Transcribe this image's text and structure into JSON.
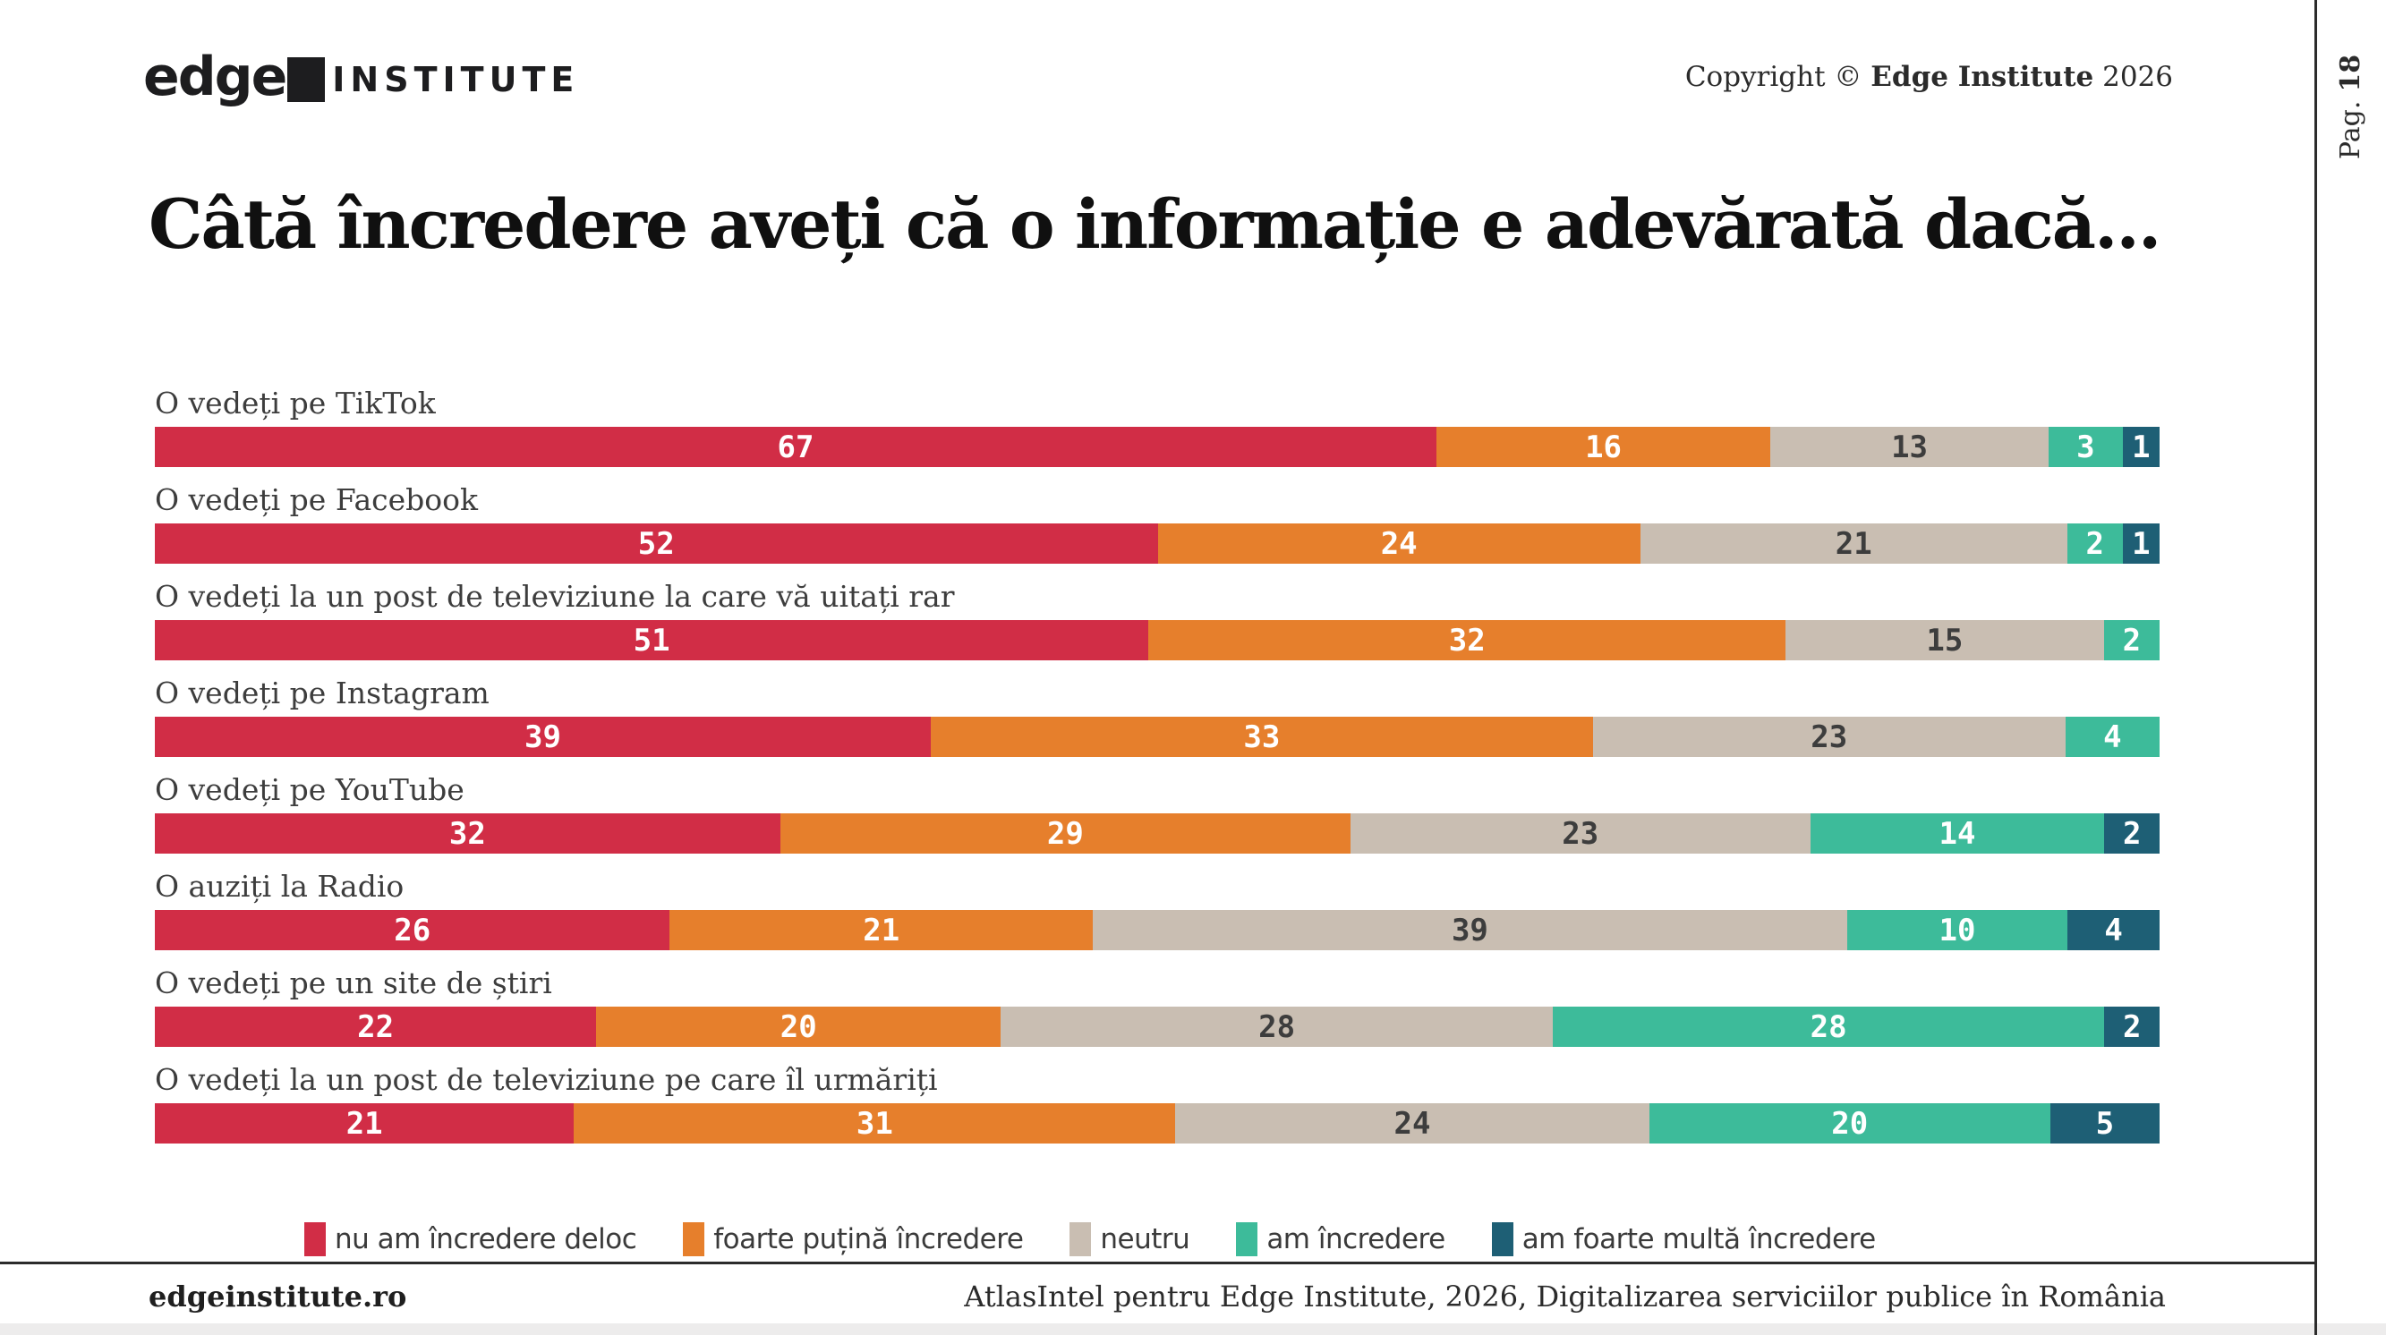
{
  "page": {
    "logo": {
      "word": "edge",
      "suffix": "INSTITUTE"
    },
    "copyright": {
      "prefix": "Copyright © ",
      "brand": "Edge Institute",
      "year": " 2026"
    },
    "page_label": "Pag.",
    "page_number": "18",
    "title": "Câtă încredere aveți că o informație e adevărată dacă...",
    "footer": {
      "left": "edgeinstitute.ro",
      "right": "AtlasIntel pentru Edge Institute, 2026, Digitalizarea serviciilor publice în România"
    }
  },
  "colors": {
    "no_trust": "#d12d46",
    "little_trust": "#e67f2c",
    "neutral": "#c9beb2",
    "trust": "#3dbb9a",
    "high_trust": "#1e5f75",
    "label_text": "#3d3d3d",
    "rule": "#2c2c2c"
  },
  "chart_data": {
    "type": "bar",
    "orientation": "horizontal-stacked",
    "title": "Câtă încredere aveți că o informație e adevărată dacă...",
    "value_range": [
      0,
      100
    ],
    "units": "percent",
    "legend_position": "bottom",
    "grid": false,
    "categories": [
      "O vedeți pe TikTok",
      "O vedeți pe Facebook",
      "O vedeți la un post de televiziune la care vă uitați rar",
      "O vedeți pe Instagram",
      "O vedeți pe YouTube",
      "O auziți la Radio",
      "O vedeți pe un site de știri",
      "O vedeți la un post de televiziune pe care îl urmăriți"
    ],
    "series": [
      {
        "name": "nu am încredere deloc",
        "color": "#d12d46",
        "text_color": "#ffffff",
        "values": [
          67,
          52,
          51,
          39,
          32,
          26,
          22,
          21
        ]
      },
      {
        "name": "foarte puțină încredere",
        "color": "#e67f2c",
        "text_color": "#ffffff",
        "values": [
          16,
          24,
          32,
          33,
          29,
          21,
          20,
          31
        ]
      },
      {
        "name": "neutru",
        "color": "#c9beb2",
        "text_color": "#3d3d3d",
        "values": [
          13,
          21,
          15,
          23,
          23,
          39,
          28,
          24
        ]
      },
      {
        "name": "am încredere",
        "color": "#3dbb9a",
        "text_color": "#ffffff",
        "values": [
          3,
          2,
          2,
          4,
          14,
          10,
          28,
          20
        ]
      },
      {
        "name": "am foarte multă încredere",
        "color": "#1e5f75",
        "text_color": "#ffffff",
        "values": [
          1,
          1,
          0,
          0,
          2,
          4,
          2,
          5
        ]
      }
    ]
  }
}
